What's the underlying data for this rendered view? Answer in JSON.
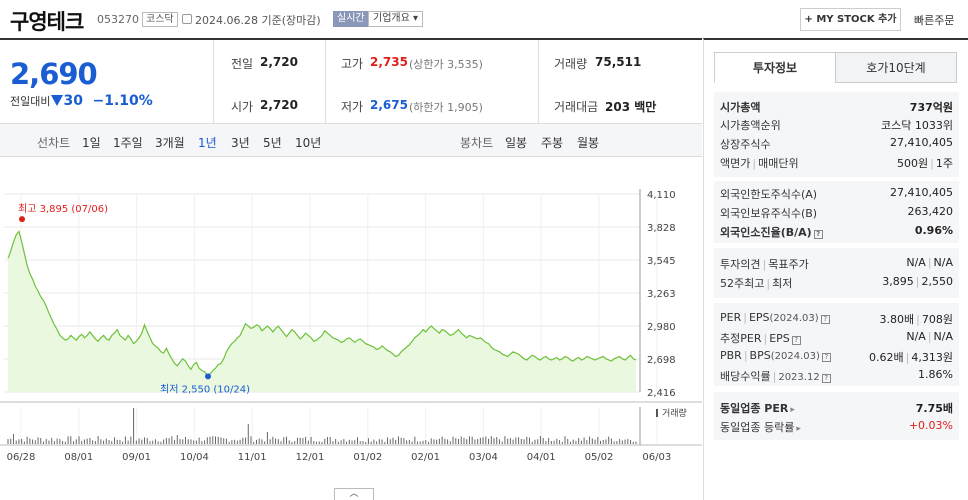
{
  "header": {
    "stock_name": "구영테크",
    "stock_code": "053270",
    "market": "코스닥",
    "date_text": "2024.06.28 기준(장마감)",
    "live_label": "실시간",
    "company_btn": "기업개요 ▾",
    "mystock_btn": "+ MY STOCK 추가",
    "quick_order": "빠른주문"
  },
  "price": {
    "current": "2,690",
    "change_label": "전일대비",
    "change_amount": "30",
    "change_rate": "−1.10%",
    "prev_close_label": "전일",
    "prev_close": "2,720",
    "open_label": "시가",
    "open": "2,720",
    "high_label": "고가",
    "high": "2,735",
    "upper_limit": "(상한가 3,535)",
    "low_label": "저가",
    "low": "2,675",
    "lower_limit": "(하한가 1,905)",
    "volume_label": "거래량",
    "volume": "75,511",
    "amount_label": "거래대금",
    "amount": "203 백만"
  },
  "toolbar": {
    "line_chart_label": "선차트",
    "periods": [
      "1일",
      "1주일",
      "3개월",
      "1년",
      "3년",
      "5년",
      "10년"
    ],
    "active_period": "1년",
    "candle_label": "봉차트",
    "candles": [
      "일봉",
      "주봉",
      "월봉"
    ]
  },
  "chart_data": {
    "type": "line",
    "x_tick_labels": [
      "06/28",
      "08/01",
      "09/01",
      "10/04",
      "11/01",
      "12/01",
      "01/02",
      "02/01",
      "03/04",
      "04/01",
      "05/02",
      "06/03"
    ],
    "y_ticks": [
      4110,
      3828,
      3545,
      3263,
      2980,
      2698,
      2416
    ],
    "ylim": [
      2416,
      4110
    ],
    "max_annotation": "최고 3,895 (07/06)",
    "min_annotation": "최저 2,550 (10/24)",
    "volume_label": "거래량",
    "values": [
      3560,
      3620,
      3700,
      3760,
      3790,
      3700,
      3600,
      3500,
      3430,
      3380,
      3320,
      3280,
      3230,
      3200,
      3150,
      3090,
      3040,
      2990,
      2950,
      2900,
      2880,
      2860,
      2870,
      2900,
      2880,
      2860,
      2890,
      2910,
      2880,
      2900,
      2930,
      2900,
      2870,
      2850,
      2880,
      2900,
      2870,
      2860,
      2900,
      2920,
      2950,
      2900,
      2880,
      2860,
      2900,
      2870,
      2830,
      2850,
      2880,
      2920,
      2990,
      2930,
      2880,
      2830,
      2810,
      2790,
      2760,
      2750,
      2790,
      2740,
      2700,
      2660,
      2640,
      2670,
      2700,
      2680,
      2640,
      2610,
      2650,
      2670,
      2620,
      2600,
      2590,
      2560,
      2570,
      2600,
      2620,
      2650,
      2660,
      2700,
      2760,
      2800,
      2830,
      2850,
      2880,
      2900,
      2950,
      3000,
      2980,
      2960,
      2970,
      2990,
      2980,
      2940,
      2960,
      2980,
      2960,
      2930,
      2960,
      2980,
      2950,
      2920,
      2890,
      2920,
      2950,
      2930,
      2900,
      2870,
      2890,
      2920,
      2900,
      2880,
      2850,
      2860,
      2880,
      2900,
      2940,
      2920,
      2900,
      2880,
      2870,
      2860,
      2840,
      2850,
      2870,
      2880,
      2860,
      2840,
      2860,
      2870,
      2850,
      2830,
      2820,
      2810,
      2800,
      2780,
      2790,
      2810,
      2790,
      2770,
      2760,
      2740,
      2720,
      2730,
      2760,
      2780,
      2800,
      2820,
      2850,
      2880,
      2900,
      2920,
      2950,
      2930,
      2960,
      2980,
      2960,
      2940,
      2920,
      2950,
      2940,
      2920,
      2900,
      2910,
      2930,
      2950,
      2920,
      2900,
      2880,
      2900,
      2890,
      2880,
      2870,
      2880,
      2860,
      2840,
      2830,
      2800,
      2780,
      2770,
      2760,
      2740,
      2730,
      2720,
      2740,
      2760,
      2750,
      2740,
      2720,
      2700,
      2690,
      2710,
      2730,
      2720,
      2700,
      2690,
      2710,
      2720,
      2700,
      2690,
      2700,
      2710,
      2690,
      2700,
      2720,
      2710,
      2690,
      2680,
      2700,
      2710,
      2690,
      2700,
      2720,
      2710,
      2700,
      2690,
      2700,
      2710,
      2720,
      2700,
      2690,
      2680,
      2700,
      2710,
      2720,
      2700,
      2690,
      2710,
      2730,
      2700,
      2690
    ]
  },
  "panel": {
    "tabs": [
      "투자정보",
      "호가10단계"
    ],
    "market_cap_label": "시가총액",
    "market_cap": "737억원",
    "cap_rank_label": "시가총액순위",
    "cap_rank": "코스닥 1033위",
    "shares_label": "상장주식수",
    "shares": "27,410,405",
    "face_label_a": "액면가",
    "face_label_b": "매매단위",
    "face_value": "500원",
    "unit_value": "1주",
    "foreign_limit_label": "외국인한도주식수(A)",
    "foreign_limit": "27,410,405",
    "foreign_hold_label": "외국인보유주식수(B)",
    "foreign_hold": "263,420",
    "foreign_rate_label": "외국인소진율(B/A)",
    "foreign_rate": "0.96%",
    "opinion_label_a": "투자의견",
    "opinion_label_b": "목표주가",
    "opinion_value": "N/A",
    "target_value": "N/A",
    "week52_label_a": "52주최고",
    "week52_label_b": "최저",
    "week52_high": "3,895",
    "week52_low": "2,550",
    "per_label": "PER",
    "eps_label": "EPS",
    "eps_period": "(2024.03)",
    "per_value": "3.80배",
    "eps_value": "708원",
    "est_per_label": "추정PER",
    "est_eps_label": "EPS",
    "est_per_value": "N/A",
    "est_eps_value": "N/A",
    "pbr_label": "PBR",
    "bps_label": "BPS",
    "bps_period": "(2024.03)",
    "pbr_value": "0.62배",
    "bps_value": "4,313원",
    "div_label": "배당수익률",
    "div_period": "2023.12",
    "div_value": "1.86%",
    "sector_per_label": "동일업종 PER",
    "sector_per": "7.75배",
    "sector_rate_label": "동일업종 등락률",
    "sector_rate": "+0.03%"
  }
}
